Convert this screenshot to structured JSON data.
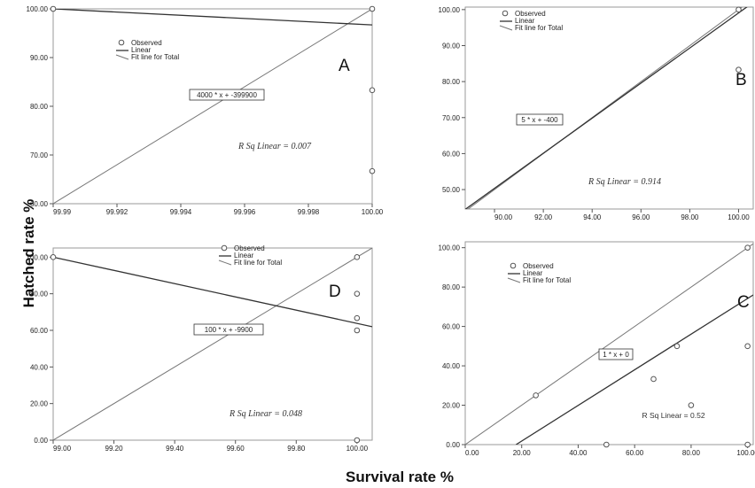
{
  "figure": {
    "ylabel": "Hatched rate %",
    "xlabel": "Survival rate %"
  },
  "chart_data": [
    {
      "type": "scatter",
      "panel_label": "A",
      "xlim": [
        99.99,
        100.0
      ],
      "ylim": [
        60.0,
        100.0
      ],
      "x_ticks": [
        "99.99",
        "99.992",
        "99.994",
        "99.996",
        "99.998",
        "100.00"
      ],
      "y_ticks": [
        "60.00",
        "70.00",
        "80.00",
        "90.00",
        "100.00"
      ],
      "legend": [
        "Observed",
        "Linear",
        "Fit line for Total"
      ],
      "legend_placement": "top-center",
      "equation": "4000 * x + -399900",
      "r_squared": "R Sq Linear = 0.007",
      "points": [
        [
          99.99,
          100.0
        ],
        [
          100.0,
          100.0
        ],
        [
          100.0,
          83.3
        ],
        [
          100.0,
          66.7
        ]
      ],
      "fit_line": [
        [
          99.99,
          60.0
        ],
        [
          100.0,
          100.0
        ]
      ],
      "linear_line": [
        [
          99.99,
          100.0
        ],
        [
          100.0,
          96.7
        ]
      ]
    },
    {
      "type": "scatter",
      "panel_label": "B",
      "xlim": [
        88.8,
        100.6
      ],
      "ylim": [
        44.6,
        100.7
      ],
      "x_ticks": [
        "90.00",
        "92.00",
        "94.00",
        "96.00",
        "98.00",
        "100.00"
      ],
      "y_ticks": [
        "50.00",
        "60.00",
        "70.00",
        "80.00",
        "90.00",
        "100.00"
      ],
      "legend": [
        "Observed",
        "Linear",
        "Fit line for Total"
      ],
      "legend_placement": "top-left",
      "equation": "5 * x + -400",
      "r_squared": "R Sq Linear = 0.914",
      "points": [
        [
          100.0,
          100.0
        ],
        [
          100.0,
          83.3
        ]
      ],
      "fit_line": [
        [
          88.8,
          44.0
        ],
        [
          100.6,
          103.0
        ]
      ],
      "linear_line": [
        [
          88.8,
          44.5
        ],
        [
          100.6,
          102.0
        ]
      ]
    },
    {
      "type": "scatter",
      "panel_label": "D",
      "xlim": [
        99.0,
        100.05
      ],
      "ylim": [
        0.0,
        105.0
      ],
      "x_ticks": [
        "99.00",
        "99.20",
        "99.40",
        "99.60",
        "99.80",
        "100.00"
      ],
      "y_ticks": [
        "0.00",
        "20.00",
        "40.00",
        "60.00",
        "80.00",
        "100.00"
      ],
      "legend": [
        "Observed",
        "Linear",
        "Fit line for Total"
      ],
      "legend_placement": "top-center",
      "equation": "100 * x + -9900",
      "r_squared": "R Sq Linear = 0.048",
      "points": [
        [
          99.0,
          100.0
        ],
        [
          100.0,
          100.0
        ],
        [
          100.0,
          80.0
        ],
        [
          100.0,
          66.7
        ],
        [
          100.0,
          60.0
        ],
        [
          100.0,
          0.0
        ]
      ],
      "fit_line": [
        [
          99.0,
          0.0
        ],
        [
          100.05,
          105.0
        ]
      ],
      "linear_line": [
        [
          99.0,
          100.0
        ],
        [
          100.05,
          62.0
        ]
      ]
    },
    {
      "type": "scatter",
      "panel_label": "C",
      "xlim": [
        0.0,
        102.0
      ],
      "ylim": [
        0.0,
        103.0
      ],
      "x_ticks": [
        "0.00",
        "20.00",
        "40.00",
        "60.00",
        "80.00",
        "100.00"
      ],
      "y_ticks": [
        "0.00",
        "20.00",
        "40.00",
        "60.00",
        "80.00",
        "100.00"
      ],
      "legend": [
        "Observed",
        "Linear",
        "Fit line for Total"
      ],
      "legend_placement": "top-left",
      "equation": "1 * x + 0",
      "r_squared": "R Sq Linear = 0.52",
      "points": [
        [
          25.0,
          25.0
        ],
        [
          50.0,
          0.0
        ],
        [
          66.7,
          33.3
        ],
        [
          75.0,
          50.0
        ],
        [
          80.0,
          20.0
        ],
        [
          100.0,
          100.0
        ],
        [
          100.0,
          50.0
        ],
        [
          100.0,
          0.0
        ]
      ],
      "fit_line": [
        [
          0.0,
          0.0
        ],
        [
          102.0,
          102.0
        ]
      ],
      "linear_line": [
        [
          18.0,
          0.0
        ],
        [
          102.0,
          76.0
        ]
      ]
    }
  ]
}
